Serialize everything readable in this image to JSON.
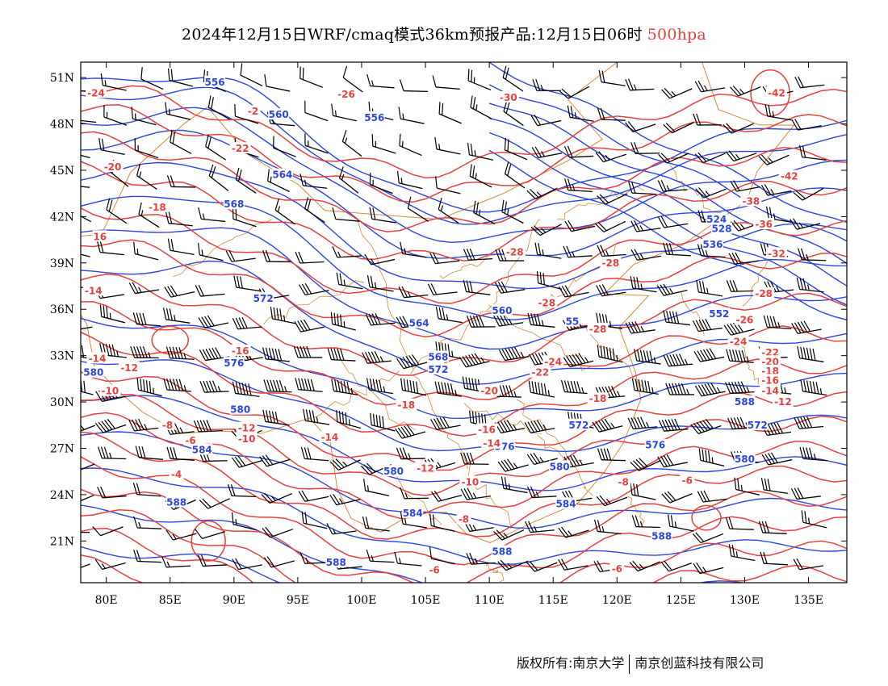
{
  "title": {
    "main": "2024年12月15日WRF/cmaq模式36km预报产品:12月15日06时",
    "level": "500hpa"
  },
  "axes": {
    "lat_labels": [
      "51N",
      "48N",
      "45N",
      "42N",
      "39N",
      "36N",
      "33N",
      "30N",
      "27N",
      "24N",
      "21N"
    ],
    "lat_values": [
      51,
      48,
      45,
      42,
      39,
      36,
      33,
      30,
      27,
      24,
      21
    ],
    "lon_labels": [
      "80E",
      "85E",
      "90E",
      "95E",
      "100E",
      "105E",
      "110E",
      "115E",
      "120E",
      "125E",
      "130E",
      "135E"
    ],
    "lon_values": [
      80,
      85,
      90,
      95,
      100,
      105,
      110,
      115,
      120,
      125,
      130,
      135
    ],
    "lon_range": [
      78,
      138
    ],
    "lat_range": [
      18.3,
      52
    ]
  },
  "colors": {
    "height_contour": "#2b45e0",
    "temperature_contour": "#e8403c",
    "borders": "#d9883a",
    "wind_barb": "#000000"
  },
  "height_labels": [
    {
      "text": "556",
      "lon": 88.5,
      "lat": 50.7
    },
    {
      "text": "560",
      "lon": 93.5,
      "lat": 48.6
    },
    {
      "text": "556",
      "lon": 101,
      "lat": 48.4
    },
    {
      "text": "564",
      "lon": 93.8,
      "lat": 44.7
    },
    {
      "text": "568",
      "lon": 90,
      "lat": 42.8
    },
    {
      "text": "572",
      "lon": 92.3,
      "lat": 36.7
    },
    {
      "text": "576",
      "lon": 90,
      "lat": 32.5
    },
    {
      "text": "560",
      "lon": 111,
      "lat": 35.9
    },
    {
      "text": "564",
      "lon": 104.5,
      "lat": 35.1
    },
    {
      "text": "55",
      "lon": 116.5,
      "lat": 35.2
    },
    {
      "text": "552",
      "lon": 128,
      "lat": 35.7
    },
    {
      "text": "568",
      "lon": 106,
      "lat": 32.9
    },
    {
      "text": "572",
      "lon": 106,
      "lat": 32.1
    },
    {
      "text": "580",
      "lon": 79,
      "lat": 31.9
    },
    {
      "text": "580",
      "lon": 90.5,
      "lat": 29.5
    },
    {
      "text": "584",
      "lon": 87.5,
      "lat": 26.9
    },
    {
      "text": "576",
      "lon": 111.2,
      "lat": 27.1
    },
    {
      "text": "572",
      "lon": 117,
      "lat": 28.5
    },
    {
      "text": "576",
      "lon": 123,
      "lat": 27.2
    },
    {
      "text": "572",
      "lon": 131,
      "lat": 28.5
    },
    {
      "text": "580",
      "lon": 102.5,
      "lat": 25.5
    },
    {
      "text": "580",
      "lon": 115.5,
      "lat": 25.8
    },
    {
      "text": "580",
      "lon": 130,
      "lat": 26.3
    },
    {
      "text": "584",
      "lon": 104,
      "lat": 22.8
    },
    {
      "text": "584",
      "lon": 116,
      "lat": 23.4
    },
    {
      "text": "588",
      "lon": 85.5,
      "lat": 23.5
    },
    {
      "text": "588",
      "lon": 98,
      "lat": 19.6
    },
    {
      "text": "588",
      "lon": 111,
      "lat": 20.3
    },
    {
      "text": "588",
      "lon": 123.5,
      "lat": 21.3
    },
    {
      "text": "524",
      "lon": 127.8,
      "lat": 41.8
    },
    {
      "text": "528",
      "lon": 128.2,
      "lat": 41.2
    },
    {
      "text": "536",
      "lon": 127.5,
      "lat": 40.2
    },
    {
      "text": "588",
      "lon": 130,
      "lat": 30
    }
  ],
  "temp_labels": [
    {
      "text": "-24",
      "lon": 79.2,
      "lat": 50
    },
    {
      "text": "-26",
      "lon": 98.8,
      "lat": 49.9
    },
    {
      "text": "-30",
      "lon": 111.5,
      "lat": 49.7
    },
    {
      "text": "-2",
      "lon": 91.5,
      "lat": 48.8
    },
    {
      "text": "-22",
      "lon": 90.5,
      "lat": 46.4
    },
    {
      "text": "-20",
      "lon": 80.5,
      "lat": 45.2
    },
    {
      "text": "-18",
      "lon": 84,
      "lat": 42.6
    },
    {
      "text": "-42",
      "lon": 132.5,
      "lat": 50
    },
    {
      "text": "-42",
      "lon": 133.5,
      "lat": 44.6
    },
    {
      "text": "-38",
      "lon": 130.5,
      "lat": 43
    },
    {
      "text": "-36",
      "lon": 131.5,
      "lat": 41.5
    },
    {
      "text": "-32",
      "lon": 132.5,
      "lat": 39.6
    },
    {
      "text": "-28",
      "lon": 112,
      "lat": 39.7
    },
    {
      "text": "-28",
      "lon": 119.5,
      "lat": 39
    },
    {
      "text": "-28",
      "lon": 131.5,
      "lat": 37
    },
    {
      "text": "-26",
      "lon": 130,
      "lat": 35.3
    },
    {
      "text": "-28",
      "lon": 114.5,
      "lat": 36.4
    },
    {
      "text": "-28",
      "lon": 118.5,
      "lat": 34.7
    },
    {
      "text": "-24",
      "lon": 129.5,
      "lat": 33.9
    },
    {
      "text": "-22",
      "lon": 132,
      "lat": 33.2
    },
    {
      "text": "-20",
      "lon": 132,
      "lat": 32.6
    },
    {
      "text": "-18",
      "lon": 132,
      "lat": 32
    },
    {
      "text": "-16",
      "lon": 132,
      "lat": 31.4
    },
    {
      "text": "-14",
      "lon": 132,
      "lat": 30.7
    },
    {
      "text": "-12",
      "lon": 133,
      "lat": 30
    },
    {
      "text": "-24",
      "lon": 115,
      "lat": 32.6
    },
    {
      "text": "-22",
      "lon": 114,
      "lat": 31.9
    },
    {
      "text": "-20",
      "lon": 110,
      "lat": 30.7
    },
    {
      "text": "-18",
      "lon": 118.5,
      "lat": 30.2
    },
    {
      "text": "-18",
      "lon": 103.5,
      "lat": 29.8
    },
    {
      "text": "-16",
      "lon": 109.8,
      "lat": 28.2
    },
    {
      "text": "-14",
      "lon": 110.2,
      "lat": 27.3
    },
    {
      "text": "-12",
      "lon": 105,
      "lat": 25.7
    },
    {
      "text": "-10",
      "lon": 108.5,
      "lat": 24.8
    },
    {
      "text": "-8",
      "lon": 120.5,
      "lat": 24.8
    },
    {
      "text": "-6",
      "lon": 125.5,
      "lat": 24.9
    },
    {
      "text": "-8",
      "lon": 108,
      "lat": 22.4
    },
    {
      "text": "-6",
      "lon": 105.7,
      "lat": 19.1
    },
    {
      "text": "-6",
      "lon": 120,
      "lat": 19.2
    },
    {
      "text": "-14",
      "lon": 79,
      "lat": 37.2
    },
    {
      "text": "16",
      "lon": 79.5,
      "lat": 40.7
    },
    {
      "text": "-16",
      "lon": 90.5,
      "lat": 33.3
    },
    {
      "text": "-14",
      "lon": 79.3,
      "lat": 32.8
    },
    {
      "text": "-12",
      "lon": 81.8,
      "lat": 32.2
    },
    {
      "text": "-10",
      "lon": 80.3,
      "lat": 30.7
    },
    {
      "text": "-8",
      "lon": 84.8,
      "lat": 28.5
    },
    {
      "text": "-6",
      "lon": 86.6,
      "lat": 27.5
    },
    {
      "text": "-4",
      "lon": 85.5,
      "lat": 25.3
    },
    {
      "text": "-12",
      "lon": 91,
      "lat": 28.3
    },
    {
      "text": "-10",
      "lon": 91,
      "lat": 27.6
    },
    {
      "text": "-14",
      "lon": 97.5,
      "lat": 27.7
    }
  ],
  "wind_barbs_meta": {
    "spacing_deg_lon": 2.6,
    "spacing_deg_lat": 2.2
  },
  "footer": {
    "left": "版权所有:南京大学",
    "right": "南京创蓝科技有限公司"
  }
}
